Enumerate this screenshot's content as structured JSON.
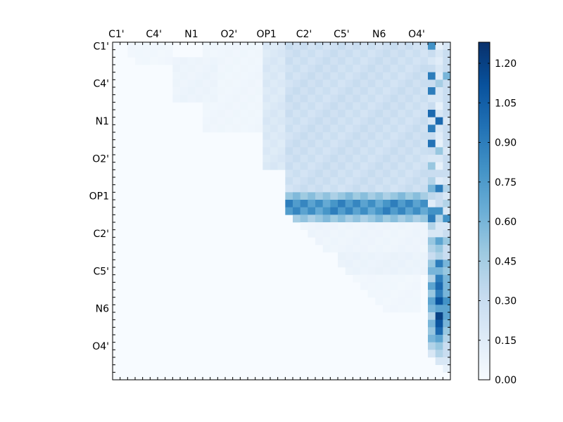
{
  "chart_data": {
    "type": "heatmap",
    "title": "",
    "xlabel": "",
    "ylabel": "",
    "size": 45,
    "x_tick_labels": [
      "C1'",
      "C4'",
      "N1",
      "O2'",
      "OP1",
      "C2'",
      "C5'",
      "N6",
      "O4'"
    ],
    "y_tick_labels": [
      "C1'",
      "C4'",
      "N1",
      "O2'",
      "OP1",
      "C2'",
      "C5'",
      "N6",
      "O4'"
    ],
    "tick_label_index_step": 5,
    "colormap": "Blues",
    "colormap_stops": [
      "#f7fbff",
      "#deebf7",
      "#c6dbef",
      "#9ecae1",
      "#6baed6",
      "#4292c6",
      "#2171b5",
      "#08519c",
      "#08306b"
    ],
    "vmin": 0.0,
    "vmax": 1.28,
    "colorbar_ticks": [
      "0.00",
      "0.15",
      "0.30",
      "0.45",
      "0.60",
      "0.75",
      "0.90",
      "1.05",
      "1.20"
    ],
    "grid": false,
    "legend": "colorbar-right",
    "values_note": "upper-triangular matrix; values below estimated from colour",
    "blocks": [
      {
        "rows": [
          0,
          3
        ],
        "cols": [
          2,
          8
        ],
        "value": 0.04
      },
      {
        "rows": [
          0,
          12
        ],
        "cols": [
          12,
          20
        ],
        "value": 0.05
      },
      {
        "rows": [
          2,
          8
        ],
        "cols": [
          8,
          14
        ],
        "value": 0.07
      },
      {
        "rows": [
          0,
          17
        ],
        "cols": [
          20,
          23
        ],
        "value": 0.18
      },
      {
        "rows": [
          0,
          20
        ],
        "cols": [
          23,
          42
        ],
        "value": 0.27
      },
      {
        "rows": [
          0,
          20
        ],
        "cols": [
          42,
          43
        ],
        "value": 0.33
      },
      {
        "rows": [
          20,
          24
        ],
        "cols": [
          23,
          42
        ],
        "value": 0.5
      },
      {
        "rows": [
          21,
          23
        ],
        "cols": [
          23,
          42
        ],
        "value": 0.78
      },
      {
        "rows": [
          24,
          28
        ],
        "cols": [
          25,
          42
        ],
        "value": 0.06
      },
      {
        "rows": [
          28,
          31
        ],
        "cols": [
          30,
          42
        ],
        "value": 0.08
      },
      {
        "rows": [
          31,
          36
        ],
        "cols": [
          32,
          41
        ],
        "value": 0.04
      }
    ],
    "column_profile": [
      {
        "col": 42,
        "values": [
          0.8,
          0.3,
          0.2,
          0.3,
          0.9,
          0.3,
          0.9,
          0.2,
          0.3,
          1.0,
          0.2,
          0.9,
          0.3,
          0.95,
          0.3,
          0.2,
          0.5,
          0.3,
          0.4,
          0.6,
          0.35,
          0.15,
          0.8,
          0.9,
          0.4,
          0.2,
          0.5,
          0.4,
          0.3,
          0.5,
          0.6,
          0.4,
          0.7,
          0.5,
          0.7,
          0.6,
          0.4,
          0.6,
          0.5,
          0.6,
          0.4,
          0.2,
          0.7,
          0.2,
          0.1
        ]
      },
      {
        "col": 43,
        "values": [
          0.1,
          0.2,
          0.15,
          0.2,
          0.15,
          0.45,
          0.2,
          0.2,
          0.1,
          0.2,
          1.0,
          0.2,
          0.15,
          0.1,
          0.5,
          0.2,
          0.1,
          0.3,
          0.15,
          0.9,
          0.3,
          0.3,
          0.8,
          0.4,
          0.2,
          0.2,
          0.7,
          0.5,
          0.4,
          0.9,
          0.6,
          0.9,
          1.0,
          0.9,
          1.1,
          0.7,
          1.2,
          1.1,
          1.0,
          0.7,
          0.5,
          0.4,
          0.2,
          0.2,
          0.1
        ]
      },
      {
        "col": 44,
        "values": [
          0.2,
          0.3,
          0.3,
          0.3,
          0.6,
          0.3,
          0.3,
          0.3,
          0.3,
          0.3,
          0.2,
          0.3,
          0.3,
          0.3,
          0.2,
          0.3,
          0.3,
          0.3,
          0.2,
          0.4,
          0.2,
          0.4,
          0.2,
          0.8,
          0.2,
          0.3,
          0.5,
          0.3,
          0.3,
          0.6,
          0.5,
          0.6,
          0.6,
          0.6,
          0.8,
          0.7,
          0.7,
          0.6,
          0.5,
          0.4,
          0.3,
          0.3,
          0.2,
          0.1,
          0.1
        ]
      }
    ]
  }
}
